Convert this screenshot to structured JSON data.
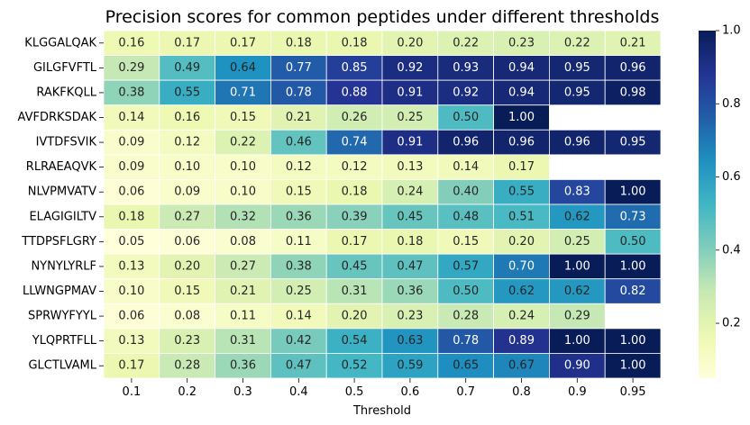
{
  "chart_data": {
    "type": "heatmap",
    "title": "Precision scores for common peptides under different thresholds",
    "xlabel": "Threshold",
    "ylabel": "",
    "x_categories": [
      "0.1",
      "0.2",
      "0.3",
      "0.4",
      "0.5",
      "0.6",
      "0.7",
      "0.8",
      "0.9",
      "0.95"
    ],
    "y_categories": [
      "KLGGALQAK",
      "GILGFVFTL",
      "RAKFKQLL",
      "AVFDRKSDAK",
      "IVTDFSVIK",
      "RLRAEAQVK",
      "NLVPMVATV",
      "ELAGIGILTV",
      "TTDPSFLGRY",
      "NYNYLYRLF",
      "LLWNGPMAV",
      "SPRWYFYYL",
      "YLQPRTFLL",
      "GLCTLVAML"
    ],
    "values": [
      [
        0.16,
        0.17,
        0.17,
        0.18,
        0.18,
        0.2,
        0.22,
        0.23,
        0.22,
        0.21
      ],
      [
        0.29,
        0.49,
        0.64,
        0.77,
        0.85,
        0.92,
        0.93,
        0.94,
        0.95,
        0.96
      ],
      [
        0.38,
        0.55,
        0.71,
        0.78,
        0.88,
        0.91,
        0.92,
        0.94,
        0.95,
        0.98
      ],
      [
        0.14,
        0.16,
        0.15,
        0.21,
        0.26,
        0.25,
        0.5,
        1.0,
        null,
        null
      ],
      [
        0.09,
        0.12,
        0.22,
        0.46,
        0.74,
        0.91,
        0.96,
        0.96,
        0.96,
        0.95
      ],
      [
        0.09,
        0.1,
        0.1,
        0.12,
        0.12,
        0.13,
        0.14,
        0.17,
        null,
        null
      ],
      [
        0.06,
        0.09,
        0.1,
        0.15,
        0.18,
        0.24,
        0.4,
        0.55,
        0.83,
        1.0
      ],
      [
        0.18,
        0.27,
        0.32,
        0.36,
        0.39,
        0.45,
        0.48,
        0.51,
        0.62,
        0.73
      ],
      [
        0.05,
        0.06,
        0.08,
        0.11,
        0.17,
        0.18,
        0.15,
        0.2,
        0.25,
        0.5
      ],
      [
        0.13,
        0.2,
        0.27,
        0.38,
        0.45,
        0.47,
        0.57,
        0.7,
        1.0,
        1.0
      ],
      [
        0.1,
        0.15,
        0.21,
        0.25,
        0.31,
        0.36,
        0.5,
        0.62,
        0.62,
        0.82
      ],
      [
        0.06,
        0.08,
        0.11,
        0.14,
        0.2,
        0.23,
        0.28,
        0.24,
        0.29,
        null
      ],
      [
        0.13,
        0.23,
        0.31,
        0.42,
        0.54,
        0.63,
        0.78,
        0.89,
        1.0,
        1.0
      ],
      [
        0.17,
        0.28,
        0.36,
        0.47,
        0.52,
        0.59,
        0.65,
        0.67,
        0.9,
        1.0
      ]
    ],
    "colormap": "YlGnBu",
    "vmin": 0.05,
    "vmax": 1.0,
    "colorbar_ticks": [
      0.2,
      0.4,
      0.6,
      0.8,
      1.0
    ],
    "colorbar_tick_labels": [
      "0.2",
      "0.4",
      "0.6",
      "0.8",
      "1.0"
    ],
    "grid": false,
    "annotated": true
  }
}
